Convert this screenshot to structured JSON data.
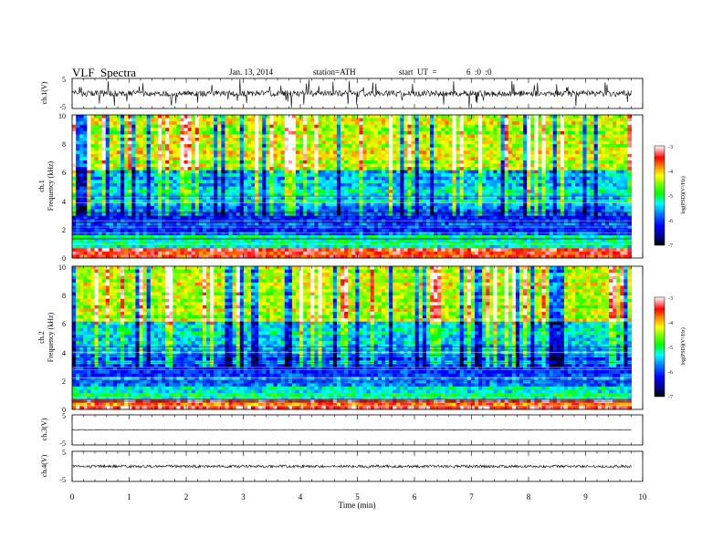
{
  "header": {
    "title": "VLF  Spectra",
    "date": "Jan. 13, 2014",
    "station": "station=ATH",
    "start_label": "start  UT  =",
    "start_value": "6  :0  :0"
  },
  "colors": {
    "colormap": [
      "#000000",
      "#000080",
      "#0000ff",
      "#0080ff",
      "#00ffff",
      "#00ff80",
      "#00ff00",
      "#80ff00",
      "#ffff00",
      "#ff8000",
      "#ff0000",
      "#ff8080",
      "#ffffff"
    ]
  },
  "chart_data": [
    {
      "type": "line",
      "panel": "ch1-waveform",
      "ylabel": "ch.1(V)",
      "ylim": [
        -5,
        5
      ],
      "yticks": [
        "5",
        "-5"
      ],
      "description_values": {
        "baseline_v": 0.0,
        "typical_amplitude_v": 1.0,
        "spike_amplitude_v": 5.0
      }
    },
    {
      "type": "heatmap",
      "panel": "ch1-spectrogram",
      "ylabel": "ch.1",
      "ylabel2": "Frequency  (kHz)",
      "ylim": [
        0,
        10
      ],
      "yticks": [
        "0",
        "2",
        "4",
        "6",
        "8",
        "10"
      ],
      "colorbar": {
        "label": "log(PSD)(V²/Hz)",
        "range": [
          -7,
          -3
        ],
        "ticks": [
          "-3",
          "-4",
          "-5",
          "-6",
          "-7"
        ]
      }
    },
    {
      "type": "heatmap",
      "panel": "ch2-spectrogram",
      "ylabel": "ch.2",
      "ylabel2": "Frequency  (kHz)",
      "ylim": [
        0,
        10
      ],
      "yticks": [
        "0",
        "2",
        "4",
        "6",
        "8",
        "10"
      ],
      "colorbar": {
        "label": "log(PSD)(V²/Hz)",
        "range": [
          -7,
          -3
        ],
        "ticks": [
          "-3",
          "-4",
          "-5",
          "-6",
          "-7"
        ]
      }
    },
    {
      "type": "line",
      "panel": "ch3-waveform",
      "ylabel": "ch.3(V)",
      "ylim": [
        -5,
        5
      ],
      "yticks": [
        "5",
        "-5"
      ],
      "description_values": {
        "baseline_v": 0.0
      }
    },
    {
      "type": "line",
      "panel": "ch4-waveform",
      "ylabel": "ch.4(V)",
      "ylim": [
        -5,
        5
      ],
      "yticks": [
        "5",
        "-5"
      ],
      "description_values": {
        "baseline_v": 0.0
      }
    }
  ],
  "xaxis": {
    "xlabel": "Time  (min)",
    "xlim": [
      0,
      10
    ],
    "data_end_min": 9.8,
    "ticks": [
      "0",
      "1",
      "2",
      "3",
      "4",
      "5",
      "6",
      "7",
      "8",
      "9",
      "10"
    ]
  }
}
